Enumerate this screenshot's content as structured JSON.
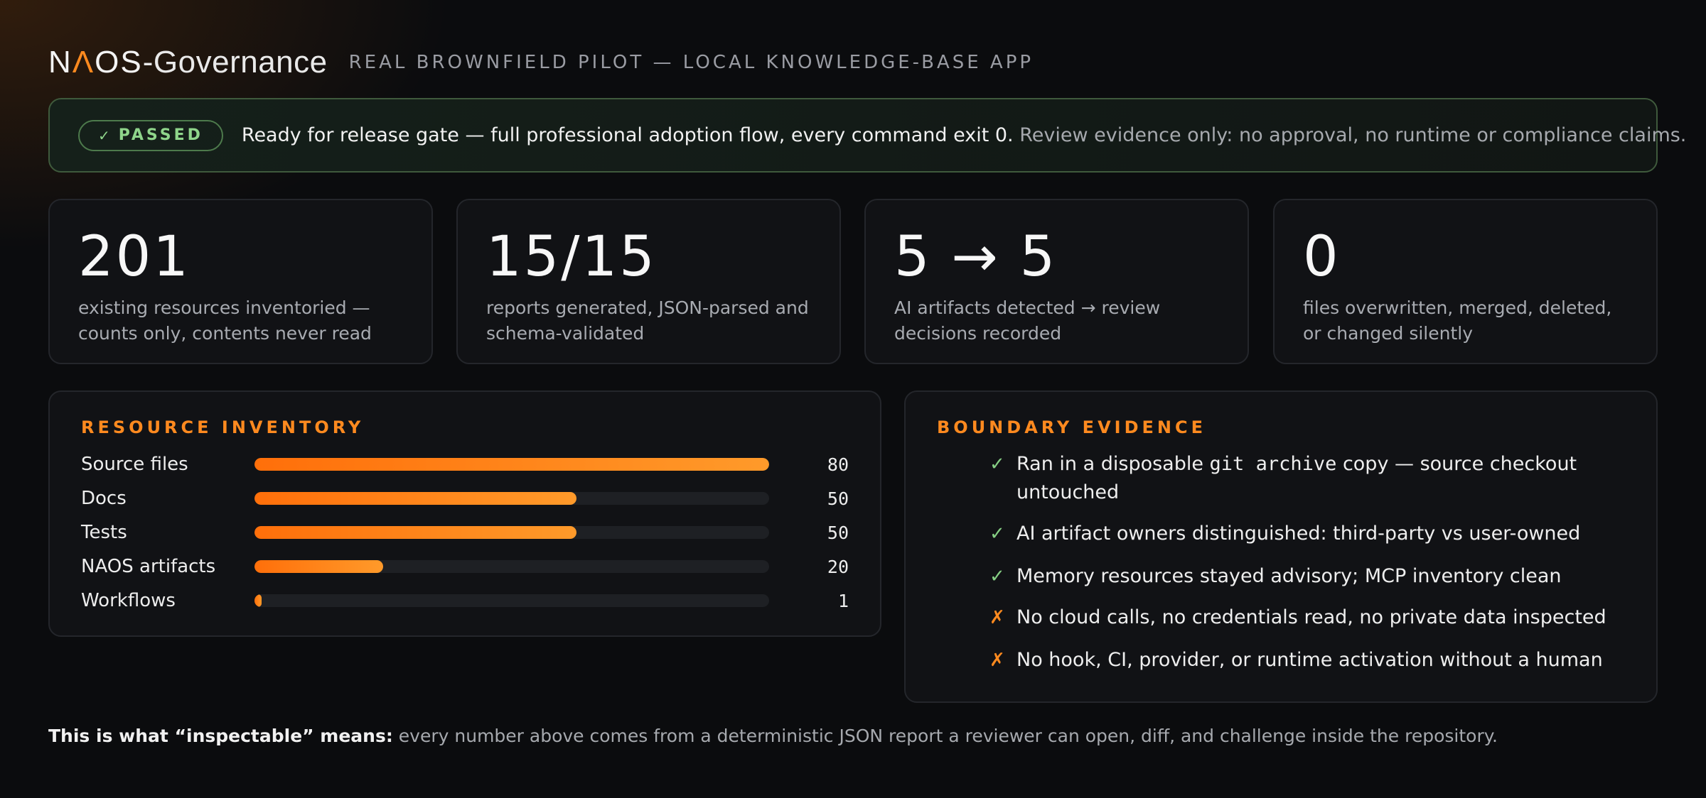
{
  "header": {
    "logo_prefix": "N",
    "logo_accent": "Λ",
    "logo_rest": "OS",
    "logo_suffix": "-Governance",
    "subtitle": "REAL BROWNFIELD PILOT — LOCAL KNOWLEDGE-BASE APP"
  },
  "banner": {
    "badge_icon": "✓",
    "badge_label": "PASSED",
    "status_text": "Ready for release gate — full professional adoption flow, every command exit 0.",
    "note_text": "Review evidence only: no approval, no runtime or compliance claims.",
    "colors": {
      "pass": "#8fd58b"
    }
  },
  "stats": [
    {
      "value": "201",
      "label": "existing resources inventoried — counts only, contents never read"
    },
    {
      "value": "15/15",
      "label": "reports generated, JSON-parsed and schema-validated"
    },
    {
      "value": "5 → 5",
      "label": "AI artifacts detected → review decisions recorded"
    },
    {
      "value": "0",
      "label": "files overwritten, merged, deleted, or changed silently"
    }
  ],
  "inventory": {
    "title": "RESOURCE INVENTORY",
    "max": 80,
    "rows": [
      {
        "label": "Source files",
        "value": 80
      },
      {
        "label": "Docs",
        "value": 50
      },
      {
        "label": "Tests",
        "value": 50
      },
      {
        "label": "NAOS artifacts",
        "value": 20
      },
      {
        "label": "Workflows",
        "value": 1
      }
    ],
    "colors": {
      "bar_start": "#ff6f0a",
      "bar_end": "#ff9a2a"
    }
  },
  "evidence": {
    "title": "BOUNDARY EVIDENCE",
    "items": [
      {
        "mark": "✓",
        "kind": "ok",
        "pre": "Ran in a disposable ",
        "code": "git archive",
        "post": " copy — source checkout untouched"
      },
      {
        "mark": "✓",
        "kind": "ok",
        "pre": "AI artifact owners distinguished: third-party vs user-owned",
        "code": "",
        "post": ""
      },
      {
        "mark": "✓",
        "kind": "ok",
        "pre": "Memory resources stayed advisory; MCP inventory clean",
        "code": "",
        "post": ""
      },
      {
        "mark": "✗",
        "kind": "no",
        "pre": "No cloud calls, no credentials read, no private data inspected",
        "code": "",
        "post": ""
      },
      {
        "mark": "✗",
        "kind": "no",
        "pre": "No hook, CI, provider, or runtime activation without a human",
        "code": "",
        "post": ""
      }
    ]
  },
  "footer": {
    "lead": "This is what “inspectable” means:",
    "text": " every number above comes from a deterministic JSON report a reviewer can open, diff, and challenge inside the repository."
  }
}
